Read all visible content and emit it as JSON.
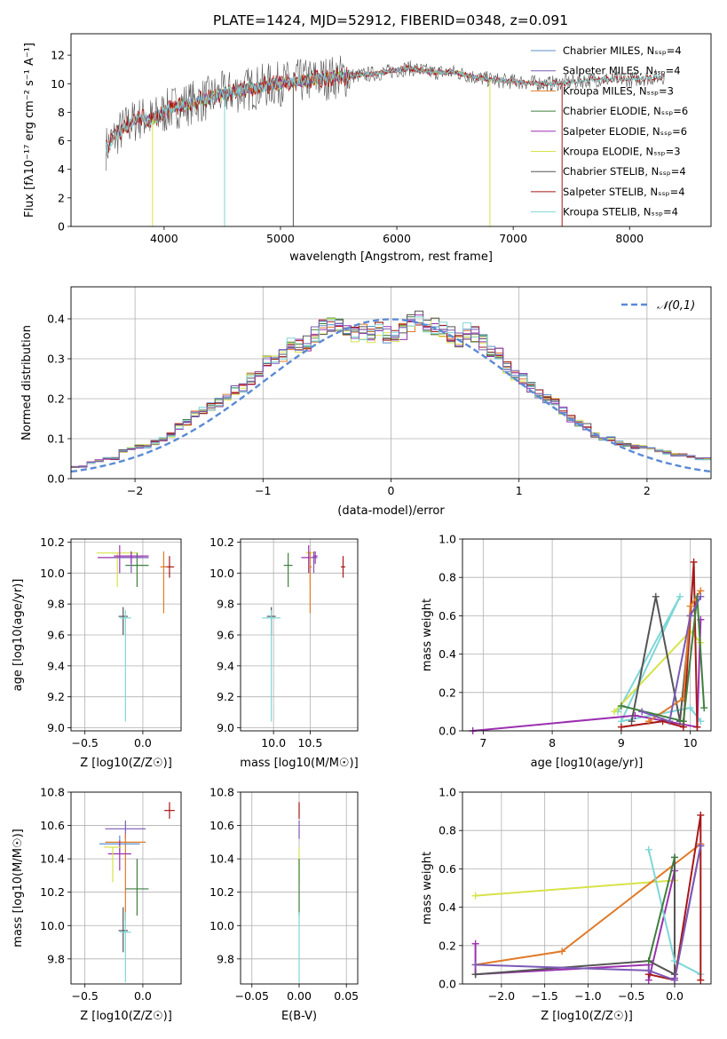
{
  "figure": {
    "title": "PLATE=1424, MJD=52912, FIBERID=0348, z=0.091"
  },
  "colors": {
    "Chabrier MILES": "#5b8fc9",
    "Salpeter MILES": "#7b5bb5",
    "Kroupa MILES": "#e07b2a",
    "Chabrier ELODIE": "#3f7f3f",
    "Salpeter ELODIE": "#9b30b0",
    "Kroupa ELODIE": "#d7e24a",
    "Chabrier STELIB": "#555555",
    "Salpeter STELIB": "#a81818",
    "Kroupa STELIB": "#7fd6d6",
    "normal": "#5b8ad4"
  },
  "legend": [
    {
      "name": "Chabrier MILES",
      "nssp": "4"
    },
    {
      "name": "Salpeter MILES",
      "nssp": "4"
    },
    {
      "name": "Kroupa MILES",
      "nssp": "3"
    },
    {
      "name": "Chabrier ELODIE",
      "nssp": "6"
    },
    {
      "name": "Salpeter ELODIE",
      "nssp": "6"
    },
    {
      "name": "Kroupa ELODIE",
      "nssp": "3"
    },
    {
      "name": "Chabrier STELIB",
      "nssp": "4"
    },
    {
      "name": "Salpeter STELIB",
      "nssp": "4"
    },
    {
      "name": "Kroupa STELIB",
      "nssp": "4"
    }
  ],
  "chart_data": [
    {
      "id": "spectrum",
      "type": "line",
      "xlabel": "wavelength [Angstrom, rest frame]",
      "ylabel": "Flux [fλ10^-17 erg cm^-2 s^-1 A^-1]",
      "xlim": [
        3200,
        8700
      ],
      "ylim": [
        0,
        13.5
      ],
      "xticks": [
        4000,
        5000,
        6000,
        7000,
        8000
      ],
      "yticks": [
        0,
        2,
        4,
        6,
        8,
        10,
        12
      ],
      "continuum": {
        "x": [
          3500,
          3600,
          3700,
          3800,
          3900,
          4000,
          4100,
          4200,
          4300,
          4400,
          4500,
          4700,
          4900,
          5100,
          5300,
          5500,
          5700,
          5900,
          6100,
          6300,
          6500,
          6700,
          6900,
          7100,
          7300,
          7500,
          7700,
          8000,
          8300,
          8600
        ],
        "y": [
          5.5,
          6.5,
          7.2,
          7.6,
          7.5,
          8.0,
          8.4,
          8.6,
          8.8,
          9.0,
          9.3,
          9.6,
          9.9,
          10.1,
          10.3,
          10.5,
          10.6,
          10.8,
          11.1,
          10.8,
          10.8,
          10.4,
          10.2,
          10.1,
          10.0,
          10.1,
          10.3,
          10.3,
          10.5,
          10.6
        ]
      }
    },
    {
      "id": "residuals",
      "type": "bar",
      "xlabel": "(data-model)/error",
      "ylabel": "Normed distribution",
      "xlim": [
        -2.5,
        2.5
      ],
      "ylim": [
        0,
        0.48
      ],
      "xticks": [
        -2,
        -1,
        0,
        1,
        2
      ],
      "yticks": [
        0.0,
        0.1,
        0.2,
        0.3,
        0.4
      ],
      "bin_edges": [
        -2.5,
        2.5
      ],
      "bin_width": 0.1,
      "envelope": [
        0.03,
        0.03,
        0.04,
        0.045,
        0.05,
        0.05,
        0.07,
        0.075,
        0.08,
        0.08,
        0.09,
        0.1,
        0.11,
        0.13,
        0.14,
        0.16,
        0.17,
        0.18,
        0.19,
        0.2,
        0.22,
        0.23,
        0.25,
        0.27,
        0.29,
        0.3,
        0.31,
        0.34,
        0.33,
        0.34,
        0.36,
        0.38,
        0.39,
        0.38,
        0.37,
        0.36,
        0.37,
        0.36,
        0.37,
        0.36,
        0.35,
        0.37,
        0.39,
        0.4,
        0.39,
        0.38,
        0.37,
        0.36,
        0.35,
        0.37,
        0.36,
        0.34,
        0.32,
        0.31,
        0.28,
        0.26,
        0.25,
        0.23,
        0.21,
        0.2,
        0.19,
        0.17,
        0.15,
        0.14,
        0.13,
        0.11,
        0.1,
        0.1,
        0.09,
        0.085,
        0.08,
        0.08,
        0.075,
        0.07,
        0.065,
        0.06,
        0.06,
        0.055,
        0.05,
        0.05
      ],
      "series_label": "𝒩(0,1)"
    },
    {
      "id": "age-vs-Z",
      "type": "scatter",
      "xlabel": "Z [log10(Z/Z☉)]",
      "ylabel": "age  [log10(age/yr)]",
      "xlim": [
        -0.62,
        0.33
      ],
      "ylim": [
        8.98,
        10.22
      ],
      "xticks": [
        -0.5,
        0.0
      ],
      "yticks": [
        9.0,
        9.2,
        9.4,
        9.6,
        9.8,
        10.0,
        10.2
      ],
      "points": [
        {
          "series": "Kroupa ELODIE",
          "x": -0.22,
          "y": 10.13,
          "ex": 0.36,
          "ey_lo": 0.22,
          "ey_hi": 0.0
        },
        {
          "series": "Salpeter ELODIE",
          "x": -0.2,
          "y": 10.1,
          "ex": 0.38,
          "ey_lo": 0.1,
          "ey_hi": 0.08
        },
        {
          "series": "Chabrier ELODIE",
          "x": -0.05,
          "y": 10.05,
          "ex": 0.2,
          "ey_lo": 0.14,
          "ey_hi": 0.08
        },
        {
          "series": "Salpeter MILES",
          "x": -0.1,
          "y": 10.1,
          "ex": 0.3,
          "ey_lo": 0.1,
          "ey_hi": 0.04
        },
        {
          "series": "Salpeter STELIB",
          "x": 0.23,
          "y": 10.04,
          "ex": 0.08,
          "ey_lo": 0.07,
          "ey_hi": 0.07
        },
        {
          "series": "Kroupa MILES",
          "x": 0.18,
          "y": 10.04,
          "ex": 0.06,
          "ey_lo": 0.3,
          "ey_hi": 0.1
        },
        {
          "series": "Chabrier STELIB",
          "x": -0.17,
          "y": 9.72,
          "ex": 0.08,
          "ey_lo": 0.12,
          "ey_hi": 0.06
        },
        {
          "series": "Kroupa STELIB",
          "x": -0.15,
          "y": 9.71,
          "ex": 0.1,
          "ey_lo": 0.67,
          "ey_hi": 0.05
        },
        {
          "series": "Salpeter ELODIE",
          "x": -0.1,
          "y": 10.11,
          "ex": 0.3,
          "ey_lo": 0.05,
          "ey_hi": 0.03
        }
      ]
    },
    {
      "id": "age-vs-mass",
      "type": "scatter",
      "xlabel": "mass [log10(M/M☉)]",
      "ylabel": "",
      "xlim": [
        9.55,
        11.15
      ],
      "ylim": [
        8.98,
        10.22
      ],
      "xticks": [
        10.0,
        10.5
      ],
      "yticks": [
        9.0,
        9.2,
        9.4,
        9.6,
        9.8,
        10.0,
        10.2
      ],
      "points": [
        {
          "series": "Kroupa ELODIE",
          "x": 10.5,
          "y": 10.13,
          "ex": 0.12,
          "ey_lo": 0.22,
          "ey_hi": 0.0
        },
        {
          "series": "Salpeter ELODIE",
          "x": 10.48,
          "y": 10.1,
          "ex": 0.2,
          "ey_lo": 0.1,
          "ey_hi": 0.08
        },
        {
          "series": "Chabrier ELODIE",
          "x": 10.2,
          "y": 10.05,
          "ex": 0.12,
          "ey_lo": 0.14,
          "ey_hi": 0.08
        },
        {
          "series": "Salpeter MILES",
          "x": 10.55,
          "y": 10.1,
          "ex": 0.1,
          "ey_lo": 0.1,
          "ey_hi": 0.04
        },
        {
          "series": "Salpeter STELIB",
          "x": 10.95,
          "y": 10.04,
          "ex": 0.06,
          "ey_lo": 0.07,
          "ey_hi": 0.07
        },
        {
          "series": "Kroupa MILES",
          "x": 10.5,
          "y": 10.04,
          "ex": 0.05,
          "ey_lo": 0.3,
          "ey_hi": 0.1
        },
        {
          "series": "Chabrier STELIB",
          "x": 9.97,
          "y": 9.72,
          "ex": 0.12,
          "ey_lo": 0.12,
          "ey_hi": 0.06
        },
        {
          "series": "Kroupa STELIB",
          "x": 9.97,
          "y": 9.71,
          "ex": 0.25,
          "ey_lo": 0.67,
          "ey_hi": 0.05
        },
        {
          "series": "Salpeter ELODIE",
          "x": 10.57,
          "y": 10.11,
          "ex": 0.06,
          "ey_lo": 0.05,
          "ey_hi": 0.03
        }
      ]
    },
    {
      "id": "massweight-vs-age",
      "type": "line",
      "xlabel": "age  [log10(age/yr)]",
      "ylabel": "mass weight",
      "xlim": [
        6.7,
        10.3
      ],
      "ylim": [
        0,
        1.0
      ],
      "xticks": [
        7,
        8,
        9,
        10
      ],
      "yticks": [
        0.0,
        0.2,
        0.4,
        0.6,
        0.8,
        1.0
      ],
      "series": [
        {
          "name": "Kroupa STELIB",
          "x": [
            8.95,
            9.85,
            9.0,
            10.0,
            10.15
          ],
          "y": [
            0.1,
            0.7,
            0.05,
            0.12,
            0.05
          ]
        },
        {
          "name": "Kroupa ELODIE",
          "x": [
            8.9,
            10.0,
            10.15
          ],
          "y": [
            0.1,
            0.52,
            0.46
          ]
        },
        {
          "name": "Salpeter ELODIE",
          "x": [
            6.85,
            9.2,
            10.1,
            10.15
          ],
          "y": [
            0.0,
            0.08,
            0.02,
            0.58
          ]
        },
        {
          "name": "Chabrier STELIB",
          "x": [
            9.15,
            9.5,
            9.85,
            10.0
          ],
          "y": [
            0.05,
            0.7,
            0.05,
            0.6
          ]
        },
        {
          "name": "Salpeter STELIB",
          "x": [
            9.0,
            9.6,
            9.9,
            10.05,
            10.1
          ],
          "y": [
            0.02,
            0.05,
            0.02,
            0.88,
            0.02
          ]
        },
        {
          "name": "Kroupa MILES",
          "x": [
            9.4,
            9.9,
            10.0,
            10.15
          ],
          "y": [
            0.05,
            0.17,
            0.65,
            0.73
          ]
        },
        {
          "name": "Chabrier ELODIE",
          "x": [
            9.0,
            9.9,
            10.1,
            10.2
          ],
          "y": [
            0.13,
            0.05,
            0.7,
            0.12
          ]
        },
        {
          "name": "Salpeter MILES",
          "x": [
            9.3,
            9.7,
            10.0,
            10.15
          ],
          "y": [
            0.1,
            0.05,
            0.6,
            0.7
          ]
        }
      ]
    },
    {
      "id": "mass-vs-Z",
      "type": "scatter",
      "xlabel": "Z [log10(Z/Z☉)]",
      "ylabel": "mass [log10(M/M☉)]",
      "xlim": [
        -0.62,
        0.33
      ],
      "ylim": [
        9.65,
        10.8
      ],
      "xticks": [
        -0.5,
        0.0
      ],
      "yticks": [
        9.8,
        10.0,
        10.2,
        10.4,
        10.6,
        10.8
      ],
      "points": [
        {
          "series": "Salpeter STELIB",
          "x": 0.23,
          "y": 10.69,
          "ex": 0.09,
          "ey_lo": 0.05,
          "ey_hi": 0.05
        },
        {
          "series": "Salpeter MILES",
          "x": -0.15,
          "y": 10.58,
          "ex": 0.35,
          "ey_lo": 0.06,
          "ey_hi": 0.05
        },
        {
          "series": "Kroupa MILES",
          "x": -0.15,
          "y": 10.5,
          "ex": 0.35,
          "ey_lo": 0.47,
          "ey_hi": 0.05
        },
        {
          "series": "Chabrier MILES",
          "x": -0.2,
          "y": 10.49,
          "ex": 0.35,
          "ey_lo": 0.05,
          "ey_hi": 0.05
        },
        {
          "series": "Salpeter ELODIE",
          "x": -0.2,
          "y": 10.43,
          "ex": 0.2,
          "ey_lo": 0.1,
          "ey_hi": 0.08
        },
        {
          "series": "Kroupa ELODIE",
          "x": -0.26,
          "y": 10.47,
          "ex": 0.15,
          "ey_lo": 0.21,
          "ey_hi": 0.0
        },
        {
          "series": "Chabrier ELODIE",
          "x": -0.05,
          "y": 10.22,
          "ex": 0.2,
          "ey_lo": 0.16,
          "ey_hi": 0.18
        },
        {
          "series": "Chabrier STELIB",
          "x": -0.17,
          "y": 9.97,
          "ex": 0.08,
          "ey_lo": 0.13,
          "ey_hi": 0.14
        },
        {
          "series": "Kroupa STELIB",
          "x": -0.15,
          "y": 9.96,
          "ex": 0.1,
          "ey_lo": 0.3,
          "ey_hi": 0.12
        }
      ]
    },
    {
      "id": "mass-vs-EBV",
      "type": "scatter",
      "xlabel": "E(B-V)",
      "ylabel": "",
      "xlim": [
        -0.062,
        0.062
      ],
      "ylim": [
        9.65,
        10.8
      ],
      "xticks": [
        -0.05,
        0.0,
        0.05
      ],
      "yticks": [
        9.8,
        10.0,
        10.2,
        10.4,
        10.6,
        10.8
      ],
      "points": [
        {
          "series": "Salpeter STELIB",
          "x": 0.0,
          "y": 10.69,
          "ex": 0,
          "ey_lo": 0.05,
          "ey_hi": 0.05
        },
        {
          "series": "Salpeter MILES",
          "x": 0.0,
          "y": 10.58,
          "ex": 0,
          "ey_lo": 0.06,
          "ey_hi": 0.05
        },
        {
          "series": "Kroupa ELODIE",
          "x": 0.0,
          "y": 10.47,
          "ex": 0,
          "ey_lo": 0.21,
          "ey_hi": 0.0
        },
        {
          "series": "Chabrier ELODIE",
          "x": 0.0,
          "y": 10.22,
          "ex": 0,
          "ey_lo": 0.16,
          "ey_hi": 0.18
        },
        {
          "series": "Kroupa STELIB",
          "x": 0.0,
          "y": 9.96,
          "ex": 0,
          "ey_lo": 0.3,
          "ey_hi": 0.12
        }
      ]
    },
    {
      "id": "massweight-vs-Z",
      "type": "line",
      "xlabel": "Z [log10(Z/Z☉)]",
      "ylabel": "mass weight",
      "xlim": [
        -2.45,
        0.42
      ],
      "ylim": [
        0,
        1.0
      ],
      "xticks": [
        -2.0,
        -1.5,
        -1.0,
        -0.5,
        0.0
      ],
      "yticks": [
        0.0,
        0.2,
        0.4,
        0.6,
        0.8,
        1.0
      ],
      "series": [
        {
          "name": "Kroupa ELODIE",
          "x": [
            -2.3,
            0.0
          ],
          "y": [
            0.46,
            0.54
          ]
        },
        {
          "name": "Kroupa MILES",
          "x": [
            -2.3,
            -1.3,
            0.3
          ],
          "y": [
            0.1,
            0.17,
            0.73
          ]
        },
        {
          "name": "Salpeter ELODIE",
          "x": [
            -2.3,
            -2.3,
            -0.3,
            -0.3,
            0.0,
            0.0,
            0.3
          ],
          "y": [
            0.21,
            0.05,
            0.1,
            0.02,
            0.59,
            0.03,
            0.72
          ]
        },
        {
          "name": "Chabrier STELIB",
          "x": [
            -2.3,
            -0.3,
            0.0,
            0.0
          ],
          "y": [
            0.05,
            0.12,
            0.05,
            0.66
          ]
        },
        {
          "name": "Kroupa STELIB",
          "x": [
            -0.3,
            0.0,
            0.3
          ],
          "y": [
            0.7,
            0.12,
            0.05
          ]
        },
        {
          "name": "Salpeter STELIB",
          "x": [
            -0.3,
            0.0,
            0.3,
            0.3
          ],
          "y": [
            0.05,
            0.02,
            0.88,
            0.02
          ]
        },
        {
          "name": "Salpeter MILES",
          "x": [
            -2.3,
            -0.3,
            0.0,
            0.3
          ],
          "y": [
            0.1,
            0.07,
            0.02,
            0.72
          ]
        },
        {
          "name": "Chabrier ELODIE",
          "x": [
            -0.3,
            0.0
          ],
          "y": [
            0.12,
            0.66
          ]
        }
      ]
    }
  ]
}
